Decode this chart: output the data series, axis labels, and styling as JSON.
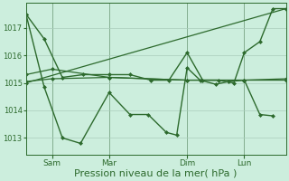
{
  "background_color": "#cceedd",
  "grid_color": "#aaccbb",
  "line_color": "#2d6a2d",
  "marker_color": "#2d6a2d",
  "xlabel": "Pression niveau de la mer( hPa )",
  "xlabel_fontsize": 8,
  "yticks": [
    1013,
    1014,
    1015,
    1016,
    1017
  ],
  "ylim": [
    1012.4,
    1017.9
  ],
  "xlim": [
    0,
    100
  ],
  "xtick_labels": [
    "Sam",
    "Mar",
    "Dim",
    "Lun"
  ],
  "xtick_positions": [
    10,
    32,
    62,
    84
  ],
  "vline_positions": [
    10,
    32,
    62,
    84
  ],
  "series": [
    {
      "x": [
        0,
        10,
        32,
        62,
        84,
        100
      ],
      "y": [
        1015.3,
        1015.5,
        1015.2,
        1015.1,
        1015.1,
        1015.1
      ],
      "marker": "D",
      "markersize": 2.0,
      "linewidth": 0.9
    },
    {
      "x": [
        0,
        10,
        32,
        62,
        84,
        100
      ],
      "y": [
        1015.05,
        1015.15,
        1015.2,
        1015.1,
        1015.1,
        1015.15
      ],
      "marker": "D",
      "markersize": 2.0,
      "linewidth": 0.9
    },
    {
      "x": [
        0,
        100
      ],
      "y": [
        1015.0,
        1017.7
      ],
      "marker": "D",
      "markersize": 2.0,
      "linewidth": 0.9
    },
    {
      "x": [
        0,
        7,
        14,
        22,
        32,
        40,
        48,
        55,
        62,
        68,
        74,
        80,
        84,
        90,
        95,
        100
      ],
      "y": [
        1017.5,
        1016.6,
        1015.2,
        1015.3,
        1015.3,
        1015.3,
        1015.1,
        1015.1,
        1016.1,
        1015.1,
        1015.1,
        1015.0,
        1016.1,
        1016.5,
        1017.7,
        1017.7
      ],
      "marker": "D",
      "markersize": 2.0,
      "linewidth": 1.0
    },
    {
      "x": [
        0,
        7,
        14,
        21,
        32,
        40,
        47,
        54,
        58,
        62,
        67,
        73,
        78,
        84,
        90,
        95
      ],
      "y": [
        1017.5,
        1014.85,
        1013.0,
        1012.8,
        1014.65,
        1013.85,
        1013.85,
        1013.2,
        1013.1,
        1015.55,
        1015.1,
        1014.95,
        1015.05,
        1015.1,
        1013.85,
        1013.8
      ],
      "marker": "D",
      "markersize": 2.0,
      "linewidth": 1.0
    }
  ]
}
